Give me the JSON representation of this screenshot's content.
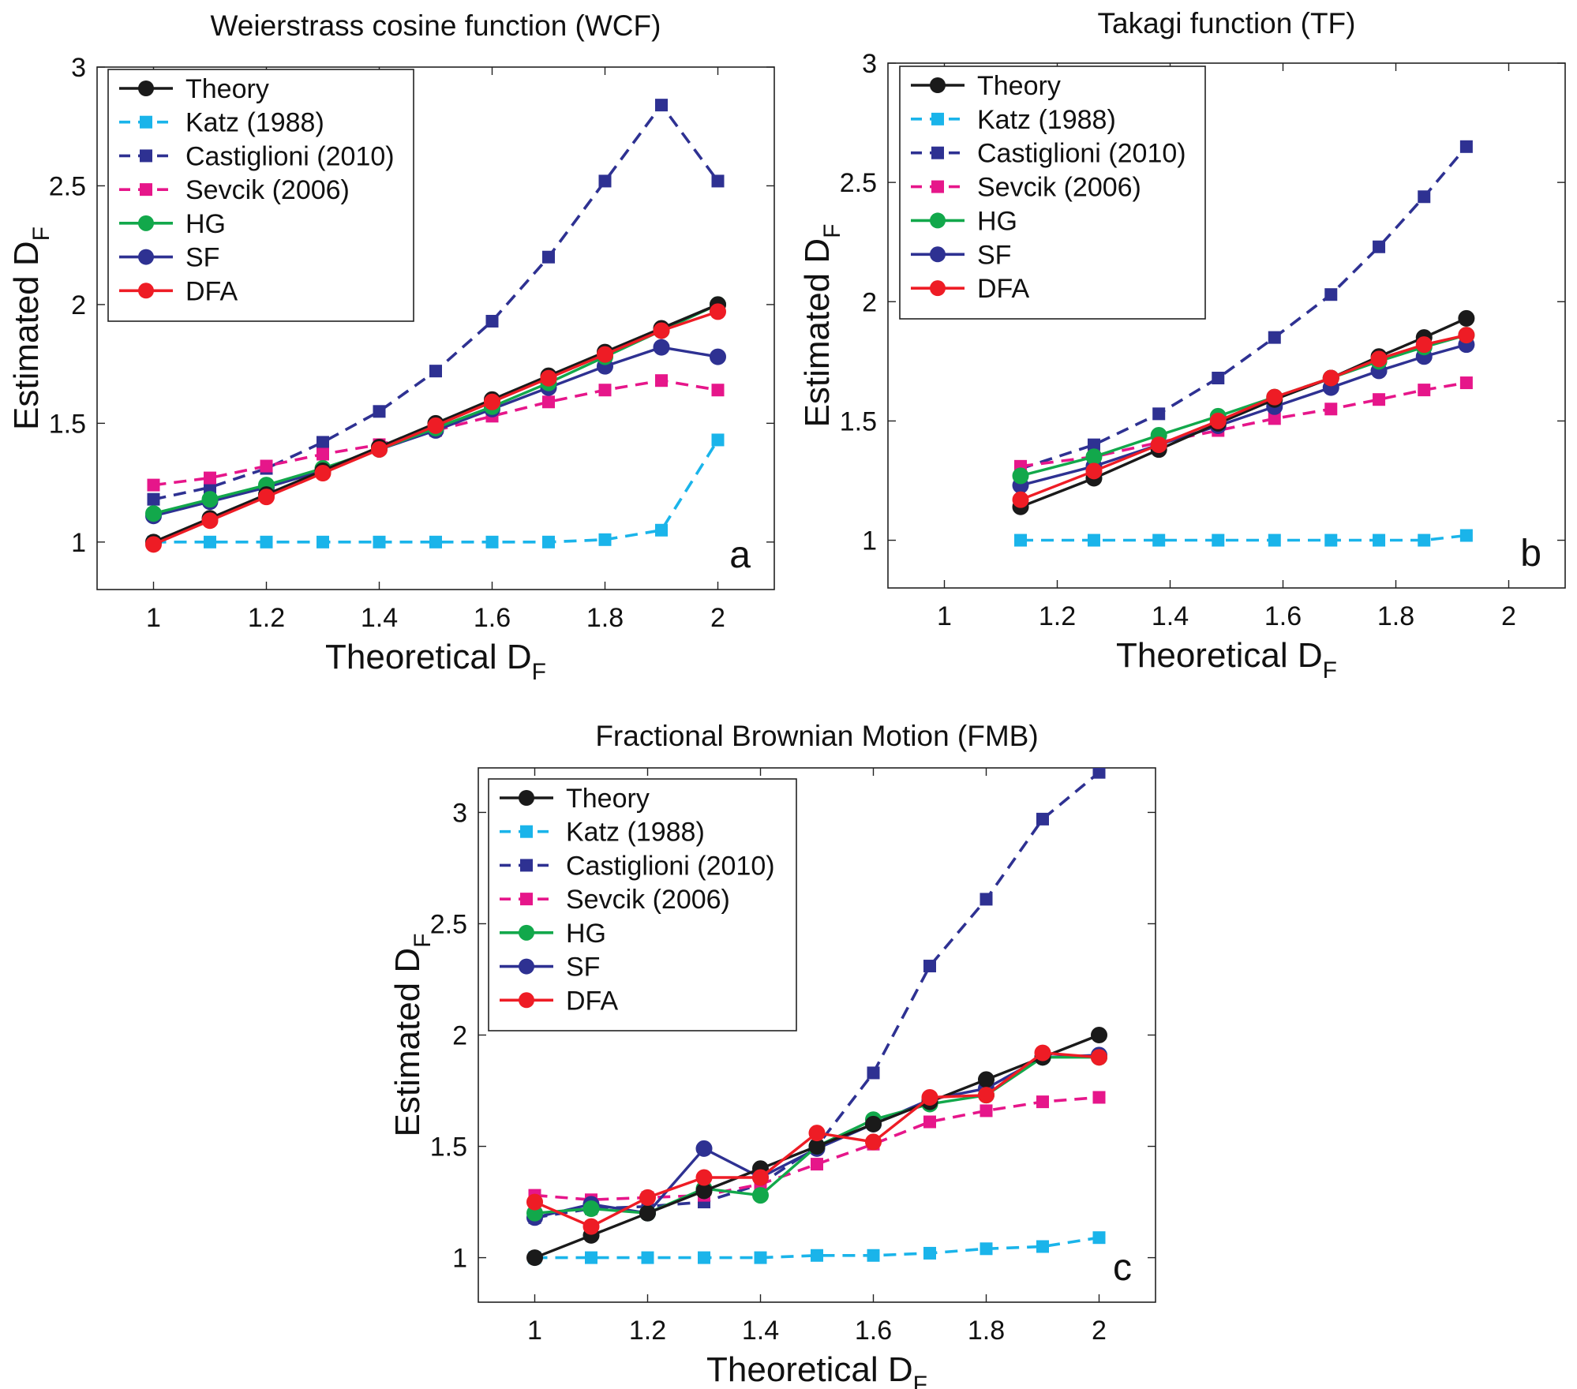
{
  "chart_data": [
    {
      "type": "line",
      "id": "a",
      "title": "Weierstrass  cosine function (WCF)",
      "xlabel_main": "Theoretical  D",
      "xlabel_sub": "F",
      "ylabel_main": "Estimated D",
      "ylabel_sub": "F",
      "panel_letter": "a",
      "xlim": [
        0.9,
        2.1
      ],
      "ylim": [
        0.8,
        3.0
      ],
      "xticks": [
        1,
        1.2,
        1.4,
        1.6,
        1.8,
        2
      ],
      "xtick_labels": [
        "1",
        "1.2",
        "1.4",
        "1.6",
        "1.8",
        "2"
      ],
      "yticks": [
        1,
        1.5,
        2,
        2.5,
        3
      ],
      "ytick_labels": [
        "1",
        "1.5",
        "2",
        "2.5",
        "3"
      ],
      "legend_position": "top-left",
      "x": [
        1.0,
        1.1,
        1.2,
        1.3,
        1.4,
        1.5,
        1.6,
        1.7,
        1.8,
        1.9,
        2.0
      ],
      "series": [
        {
          "name": "Theory",
          "color": "#1a1a1a",
          "dash": "solid",
          "marker": "circle",
          "values": [
            1.0,
            1.1,
            1.2,
            1.3,
            1.4,
            1.5,
            1.6,
            1.7,
            1.8,
            1.9,
            2.0
          ]
        },
        {
          "name": "Katz (1988)",
          "color": "#1ab4ea",
          "dash": "dashed",
          "marker": "square",
          "values": [
            1.0,
            1.0,
            1.0,
            1.0,
            1.0,
            1.0,
            1.0,
            1.0,
            1.01,
            1.05,
            1.43
          ]
        },
        {
          "name": "Castiglioni (2010)",
          "color": "#2e3192",
          "dash": "dashed",
          "marker": "square",
          "values": [
            1.18,
            1.23,
            1.31,
            1.42,
            1.55,
            1.72,
            1.93,
            2.2,
            2.52,
            2.84,
            2.52
          ]
        },
        {
          "name": "Sevcik (2006)",
          "color": "#e6168a",
          "dash": "dashed",
          "marker": "square",
          "values": [
            1.24,
            1.27,
            1.32,
            1.37,
            1.41,
            1.47,
            1.53,
            1.59,
            1.64,
            1.68,
            1.64
          ]
        },
        {
          "name": "HG",
          "color": "#12a84b",
          "dash": "solid",
          "marker": "circle",
          "values": [
            1.12,
            1.18,
            1.24,
            1.31,
            1.39,
            1.48,
            1.57,
            1.67,
            1.78,
            1.89,
            2.0
          ]
        },
        {
          "name": "SF",
          "color": "#2e3192",
          "dash": "solid",
          "marker": "circle",
          "values": [
            1.11,
            1.17,
            1.23,
            1.3,
            1.39,
            1.47,
            1.56,
            1.65,
            1.74,
            1.82,
            1.78
          ]
        },
        {
          "name": "DFA",
          "color": "#ee1c25",
          "dash": "solid",
          "marker": "circle",
          "values": [
            0.99,
            1.09,
            1.19,
            1.29,
            1.39,
            1.49,
            1.59,
            1.69,
            1.79,
            1.89,
            1.97
          ]
        }
      ]
    },
    {
      "type": "line",
      "id": "b",
      "title": "Takagi function (TF)",
      "xlabel_main": "Theoretical  D",
      "xlabel_sub": "F",
      "ylabel_main": "Estimated D",
      "ylabel_sub": "F",
      "panel_letter": "b",
      "xlim": [
        0.9,
        2.1
      ],
      "ylim": [
        0.8,
        3.0
      ],
      "xticks": [
        1,
        1.2,
        1.4,
        1.6,
        1.8,
        2
      ],
      "xtick_labels": [
        "1",
        "1.2",
        "1.4",
        "1.6",
        "1.8",
        "2"
      ],
      "yticks": [
        1,
        1.5,
        2,
        2.5,
        3
      ],
      "ytick_labels": [
        "1",
        "1.5",
        "2",
        "2.5",
        "3"
      ],
      "legend_position": "top-left",
      "x": [
        1.135,
        1.265,
        1.38,
        1.485,
        1.585,
        1.685,
        1.77,
        1.85,
        1.925
      ],
      "series": [
        {
          "name": "Theory",
          "color": "#1a1a1a",
          "dash": "solid",
          "marker": "circle",
          "values": [
            1.14,
            1.26,
            1.38,
            1.49,
            1.59,
            1.68,
            1.77,
            1.85,
            1.93
          ]
        },
        {
          "name": "Katz (1988)",
          "color": "#1ab4ea",
          "dash": "dashed",
          "marker": "square",
          "values": [
            1.0,
            1.0,
            1.0,
            1.0,
            1.0,
            1.0,
            1.0,
            1.0,
            1.02
          ]
        },
        {
          "name": "Castiglioni (2010)",
          "color": "#2e3192",
          "dash": "dashed",
          "marker": "square",
          "values": [
            1.3,
            1.4,
            1.53,
            1.68,
            1.85,
            2.03,
            2.23,
            2.44,
            2.65
          ]
        },
        {
          "name": "Sevcik (2006)",
          "color": "#e6168a",
          "dash": "dashed",
          "marker": "square",
          "values": [
            1.31,
            1.35,
            1.41,
            1.46,
            1.51,
            1.55,
            1.59,
            1.63,
            1.66
          ]
        },
        {
          "name": "HG",
          "color": "#12a84b",
          "dash": "solid",
          "marker": "circle",
          "values": [
            1.27,
            1.35,
            1.44,
            1.52,
            1.6,
            1.68,
            1.75,
            1.81,
            1.86
          ]
        },
        {
          "name": "SF",
          "color": "#2e3192",
          "dash": "solid",
          "marker": "circle",
          "values": [
            1.23,
            1.31,
            1.4,
            1.48,
            1.56,
            1.64,
            1.71,
            1.77,
            1.82
          ]
        },
        {
          "name": "DFA",
          "color": "#ee1c25",
          "dash": "solid",
          "marker": "circle",
          "values": [
            1.17,
            1.29,
            1.4,
            1.5,
            1.6,
            1.68,
            1.76,
            1.82,
            1.86
          ]
        }
      ]
    },
    {
      "type": "line",
      "id": "c",
      "title": "Fractional Brownian Motion (FMB)",
      "xlabel_main": "Theoretical D",
      "xlabel_sub": "F",
      "ylabel_main": "Estimated D",
      "ylabel_sub": "F",
      "panel_letter": "c",
      "xlim": [
        0.9,
        2.1
      ],
      "ylim": [
        0.8,
        3.2
      ],
      "xticks": [
        1,
        1.2,
        1.4,
        1.6,
        1.8,
        2
      ],
      "xtick_labels": [
        "1",
        "1.2",
        "1.4",
        "1.6",
        "1.8",
        "2"
      ],
      "yticks": [
        1,
        1.5,
        2,
        2.5,
        3
      ],
      "ytick_labels": [
        "1",
        "1.5",
        "2",
        "2.5",
        "3"
      ],
      "legend_position": "top-left",
      "x": [
        1.0,
        1.1,
        1.2,
        1.3,
        1.4,
        1.5,
        1.6,
        1.7,
        1.8,
        1.9,
        2.0
      ],
      "series": [
        {
          "name": "Theory",
          "color": "#1a1a1a",
          "dash": "solid",
          "marker": "circle",
          "values": [
            1.0,
            1.1,
            1.2,
            1.3,
            1.4,
            1.5,
            1.6,
            1.7,
            1.8,
            1.9,
            2.0
          ]
        },
        {
          "name": "Katz (1988)",
          "color": "#1ab4ea",
          "dash": "dashed",
          "marker": "square",
          "values": [
            1.0,
            1.0,
            1.0,
            1.0,
            1.0,
            1.01,
            1.01,
            1.02,
            1.04,
            1.05,
            1.09
          ]
        },
        {
          "name": "Castiglioni (2010)",
          "color": "#2e3192",
          "dash": "dashed",
          "marker": "square",
          "values": [
            1.18,
            1.22,
            1.23,
            1.25,
            1.33,
            1.5,
            1.83,
            2.31,
            2.61,
            2.97,
            3.18
          ]
        },
        {
          "name": "Sevcik (2006)",
          "color": "#e6168a",
          "dash": "dashed",
          "marker": "square",
          "values": [
            1.28,
            1.26,
            1.27,
            1.28,
            1.33,
            1.42,
            1.51,
            1.61,
            1.66,
            1.7,
            1.72
          ]
        },
        {
          "name": "HG",
          "color": "#12a84b",
          "dash": "solid",
          "marker": "circle",
          "values": [
            1.2,
            1.22,
            1.2,
            1.31,
            1.28,
            1.5,
            1.62,
            1.69,
            1.73,
            1.9,
            1.9
          ]
        },
        {
          "name": "SF",
          "color": "#2e3192",
          "dash": "solid",
          "marker": "circle",
          "values": [
            1.18,
            1.24,
            1.2,
            1.49,
            1.36,
            1.49,
            1.6,
            1.71,
            1.76,
            1.9,
            1.91
          ]
        },
        {
          "name": "DFA",
          "color": "#ee1c25",
          "dash": "solid",
          "marker": "circle",
          "values": [
            1.25,
            1.14,
            1.27,
            1.36,
            1.36,
            1.56,
            1.52,
            1.72,
            1.73,
            1.92,
            1.9
          ]
        }
      ]
    }
  ]
}
